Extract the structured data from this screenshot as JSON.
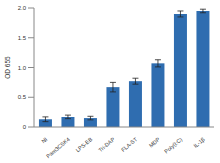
{
  "chart_data": {
    "type": "bar",
    "categories": [
      "NI",
      "Pam3CSK4",
      "LPS-EB",
      "Tri-DAP",
      "FLA-ST",
      "MDP",
      "Poly(I:C)",
      "IL-1β"
    ],
    "values": [
      0.13,
      0.17,
      0.15,
      0.67,
      0.77,
      1.07,
      1.9,
      1.95
    ],
    "errors": [
      0.04,
      0.03,
      0.03,
      0.08,
      0.05,
      0.06,
      0.05,
      0.03
    ],
    "color": "#2f6db0",
    "y_label": "OD 655",
    "ylim": [
      0,
      2
    ],
    "yticks": [
      0,
      0.5,
      {
        "value": 1,
        "label": "1.0"
      },
      1.5,
      {
        "value": 2,
        "label": "2.0"
      }
    ],
    "grid": false
  }
}
